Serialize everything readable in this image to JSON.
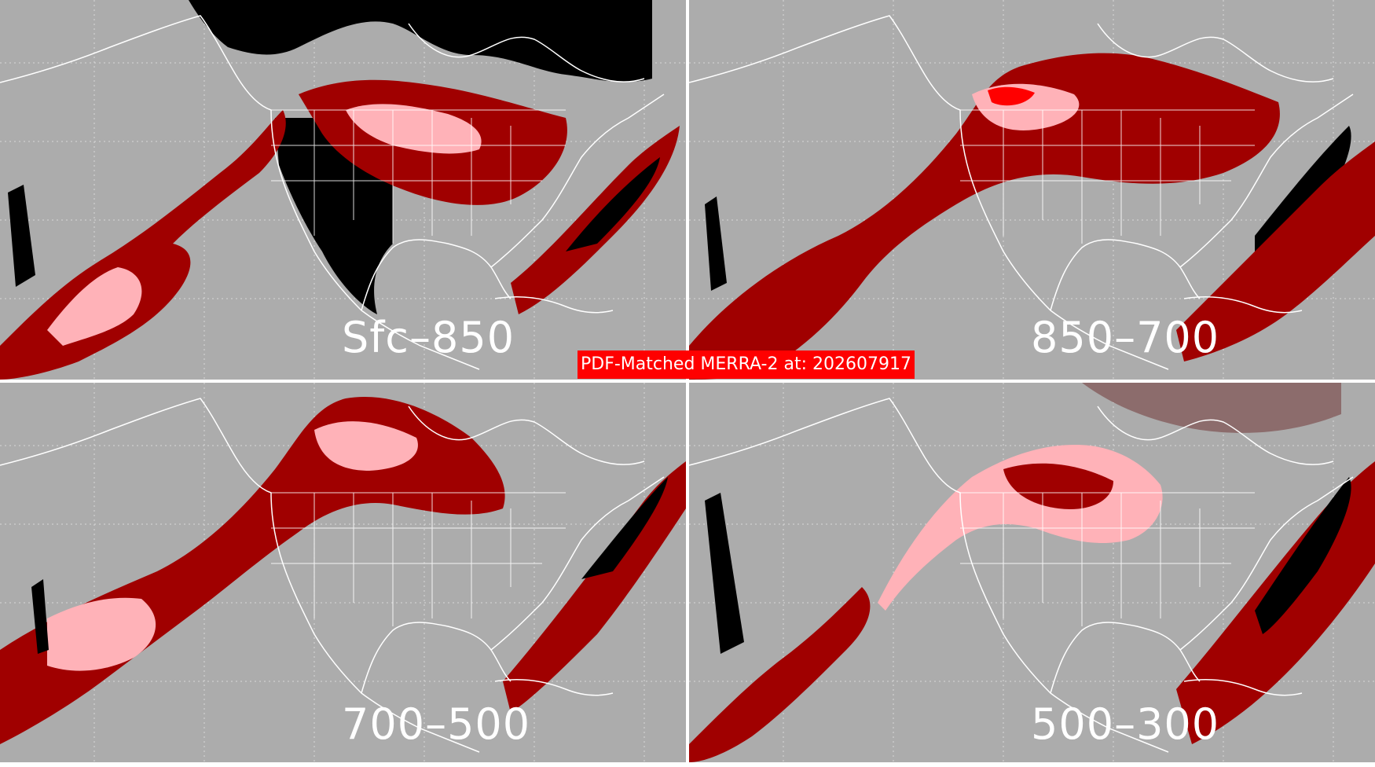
{
  "title": "PDF-Matched MERRA-2 at: 202607917",
  "colors": {
    "background": "#acacac",
    "coastline": "#ffffff",
    "gridline": "#d8d8d8",
    "dark_red": "#a00000",
    "red": "#ff0000",
    "pink": "#ffb2b8",
    "brown": "#8c6c6c",
    "black": "#000000",
    "banner": "#ff0000"
  },
  "panels": [
    {
      "label": "Sfc–850"
    },
    {
      "label": "850–700"
    },
    {
      "label": "700–500"
    },
    {
      "label": "500–300"
    }
  ]
}
